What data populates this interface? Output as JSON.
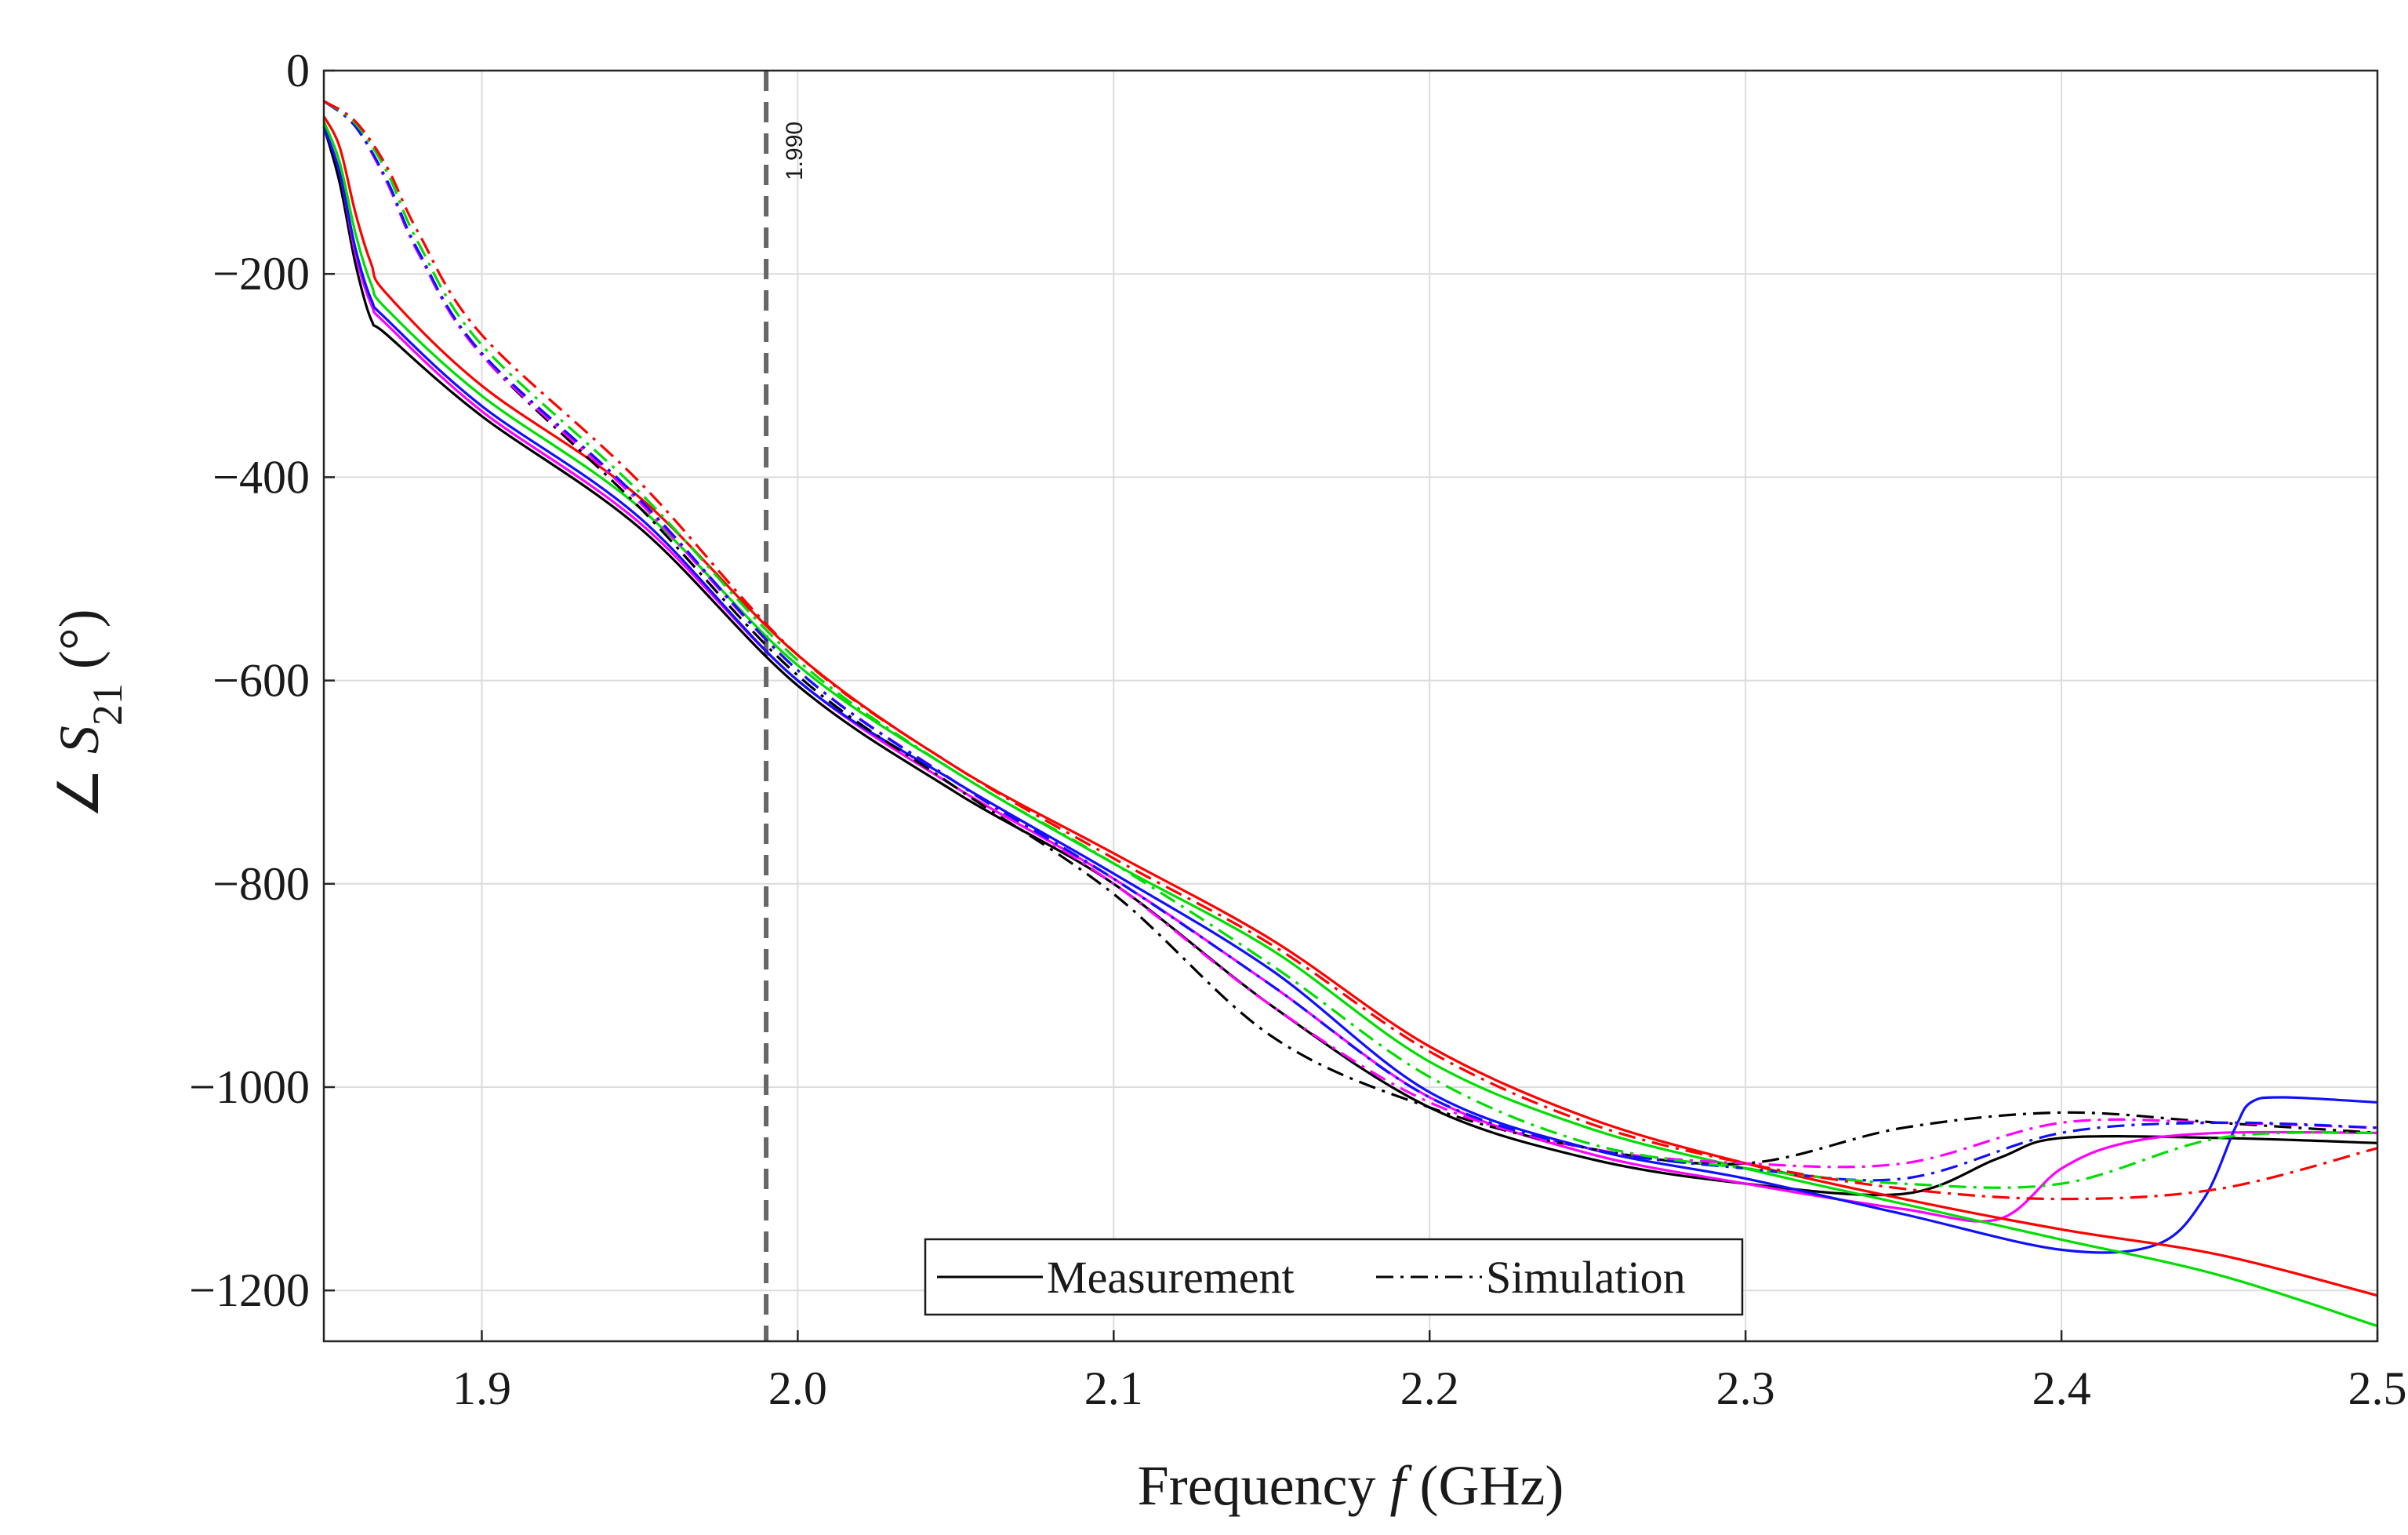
{
  "chart_data": {
    "type": "line",
    "title": "",
    "xlabel": "Frequency f (GHz)",
    "xlabel_parts": {
      "pre": "Frequency ",
      "var": "f",
      "post": " (GHz)"
    },
    "ylabel": "∠ S21 (°)",
    "ylabel_parts": {
      "angle": "∠ ",
      "var": "S",
      "sub": "21",
      "post": " (°)"
    },
    "xlim": [
      1.85,
      2.5
    ],
    "ylim": [
      -1250,
      0
    ],
    "xticks": [
      1.9,
      2.0,
      2.1,
      2.2,
      2.3,
      2.4,
      2.5
    ],
    "xtick_labels": [
      "1.9",
      "2.0",
      "2.1",
      "2.2",
      "2.3",
      "2.4",
      "2.5"
    ],
    "yticks": [
      0,
      -200,
      -400,
      -600,
      -800,
      -1000,
      -1200
    ],
    "ytick_labels": [
      "0",
      "−200",
      "−400",
      "−600",
      "−800",
      "−1000",
      "−1200"
    ],
    "grid": true,
    "marker_line": {
      "x": 1.99,
      "label": "1.990"
    },
    "legend": {
      "position": "bottom-center",
      "entries": [
        {
          "label": "Measurement",
          "style": "solid"
        },
        {
          "label": "Simulation",
          "style": "dashdot"
        }
      ]
    },
    "colors": {
      "black": "#000000",
      "red": "#ff0000",
      "green": "#00dd00",
      "blue": "#1010ff",
      "magenta": "#ff00ff",
      "marker": "#666666"
    },
    "series": [
      {
        "name": "Measurement black",
        "color": "black",
        "style": "solid",
        "x": [
          1.85,
          1.855,
          1.86,
          1.865,
          1.87,
          1.9,
          1.95,
          2.0,
          2.05,
          2.1,
          2.15,
          2.2,
          2.25,
          2.3,
          2.35,
          2.38,
          2.4,
          2.45,
          2.5
        ],
        "y": [
          -55,
          -110,
          -190,
          -245,
          -260,
          -340,
          -450,
          -605,
          -710,
          -800,
          -920,
          -1020,
          -1070,
          -1095,
          -1105,
          -1070,
          -1050,
          -1050,
          -1055
        ]
      },
      {
        "name": "Measurement magenta",
        "color": "magenta",
        "style": "solid",
        "x": [
          1.85,
          1.855,
          1.86,
          1.865,
          1.87,
          1.9,
          1.95,
          2.0,
          2.05,
          2.1,
          2.15,
          2.2,
          2.25,
          2.3,
          2.35,
          2.38,
          2.4,
          2.42,
          2.45,
          2.5
        ],
        "y": [
          -55,
          -100,
          -180,
          -230,
          -250,
          -335,
          -445,
          -600,
          -705,
          -795,
          -900,
          -1010,
          -1065,
          -1095,
          -1120,
          -1130,
          -1080,
          -1055,
          -1045,
          -1045
        ]
      },
      {
        "name": "Measurement blue",
        "color": "blue",
        "style": "solid",
        "x": [
          1.85,
          1.855,
          1.86,
          1.865,
          1.87,
          1.9,
          1.95,
          2.0,
          2.05,
          2.1,
          2.15,
          2.2,
          2.25,
          2.3,
          2.35,
          2.4,
          2.43,
          2.445,
          2.455,
          2.46,
          2.47,
          2.5
        ],
        "y": [
          -55,
          -100,
          -175,
          -225,
          -245,
          -330,
          -440,
          -600,
          -700,
          -790,
          -885,
          -1005,
          -1060,
          -1090,
          -1125,
          -1160,
          -1155,
          -1110,
          -1040,
          -1015,
          -1010,
          -1015
        ]
      },
      {
        "name": "Measurement green",
        "color": "green",
        "style": "solid",
        "x": [
          1.85,
          1.855,
          1.86,
          1.865,
          1.87,
          1.9,
          1.95,
          2.0,
          2.05,
          2.1,
          2.15,
          2.2,
          2.25,
          2.3,
          2.35,
          2.4,
          2.45,
          2.5
        ],
        "y": [
          -50,
          -90,
          -160,
          -210,
          -235,
          -320,
          -430,
          -585,
          -690,
          -780,
          -865,
          -975,
          -1040,
          -1080,
          -1115,
          -1150,
          -1185,
          -1235
        ]
      },
      {
        "name": "Measurement red",
        "color": "red",
        "style": "solid",
        "x": [
          1.85,
          1.855,
          1.86,
          1.865,
          1.87,
          1.9,
          1.95,
          2.0,
          2.05,
          2.1,
          2.15,
          2.2,
          2.25,
          2.3,
          2.35,
          2.4,
          2.45,
          2.5
        ],
        "y": [
          -45,
          -75,
          -140,
          -190,
          -220,
          -310,
          -420,
          -575,
          -685,
          -770,
          -855,
          -960,
          -1030,
          -1075,
          -1110,
          -1140,
          -1165,
          -1205
        ]
      },
      {
        "name": "Simulation black",
        "color": "black",
        "style": "dashdot",
        "x": [
          1.85,
          1.86,
          1.87,
          1.88,
          1.9,
          1.95,
          2.0,
          2.05,
          2.1,
          2.15,
          2.2,
          2.25,
          2.3,
          2.35,
          2.4,
          2.45,
          2.5
        ],
        "y": [
          -30,
          -55,
          -110,
          -180,
          -280,
          -430,
          -595,
          -705,
          -810,
          -950,
          -1020,
          -1060,
          -1075,
          -1040,
          -1025,
          -1035,
          -1045
        ]
      },
      {
        "name": "Simulation magenta",
        "color": "magenta",
        "style": "dashdot",
        "x": [
          1.85,
          1.86,
          1.87,
          1.88,
          1.9,
          1.95,
          2.0,
          2.05,
          2.1,
          2.15,
          2.2,
          2.25,
          2.3,
          2.35,
          2.4,
          2.45,
          2.5
        ],
        "y": [
          -30,
          -55,
          -110,
          -180,
          -280,
          -425,
          -590,
          -700,
          -800,
          -920,
          -1015,
          -1060,
          -1075,
          -1075,
          -1035,
          -1035,
          -1040
        ]
      },
      {
        "name": "Simulation blue",
        "color": "blue",
        "style": "dashdot",
        "x": [
          1.85,
          1.86,
          1.87,
          1.88,
          1.9,
          1.95,
          2.0,
          2.05,
          2.1,
          2.15,
          2.2,
          2.25,
          2.3,
          2.35,
          2.4,
          2.45,
          2.5
        ],
        "y": [
          -30,
          -55,
          -108,
          -178,
          -278,
          -422,
          -590,
          -700,
          -795,
          -900,
          -1010,
          -1060,
          -1080,
          -1090,
          -1045,
          -1035,
          -1040
        ]
      },
      {
        "name": "Simulation green",
        "color": "green",
        "style": "dashdot",
        "x": [
          1.85,
          1.86,
          1.87,
          1.88,
          1.9,
          1.95,
          2.0,
          2.05,
          2.1,
          2.15,
          2.2,
          2.25,
          2.3,
          2.35,
          2.4,
          2.45,
          2.5
        ],
        "y": [
          -30,
          -52,
          -100,
          -170,
          -270,
          -415,
          -580,
          -690,
          -780,
          -880,
          -990,
          -1055,
          -1080,
          -1095,
          -1095,
          -1050,
          -1045
        ]
      },
      {
        "name": "Simulation red",
        "color": "red",
        "style": "dashdot",
        "x": [
          1.85,
          1.86,
          1.87,
          1.88,
          1.9,
          1.95,
          2.0,
          2.05,
          2.1,
          2.15,
          2.2,
          2.25,
          2.3,
          2.35,
          2.4,
          2.45,
          2.5
        ],
        "y": [
          -30,
          -50,
          -95,
          -160,
          -260,
          -405,
          -575,
          -685,
          -775,
          -860,
          -965,
          -1035,
          -1075,
          -1100,
          -1110,
          -1100,
          -1060
        ]
      }
    ]
  }
}
